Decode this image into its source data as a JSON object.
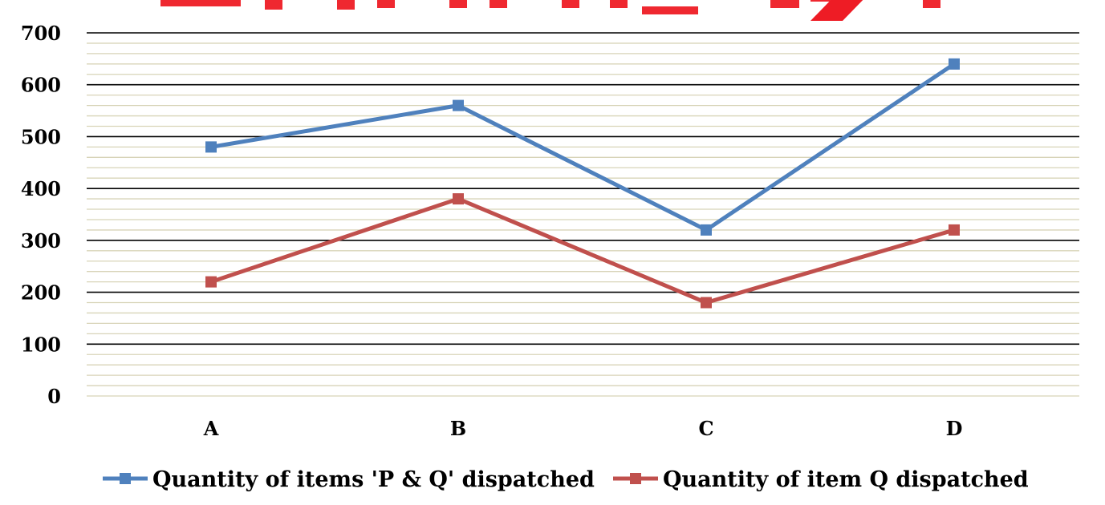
{
  "colors": {
    "series_pq": "#4F81BD",
    "series_q": "#C0504D",
    "watermark": "#EE1C25",
    "major_grid": "#000000",
    "minor_grid": "#D8D4B8"
  },
  "chart_data": {
    "type": "line",
    "categories": [
      "A",
      "B",
      "C",
      "D"
    ],
    "series": [
      {
        "name": "Quantity of items 'P & Q' dispatched",
        "values": [
          480,
          560,
          320,
          640
        ]
      },
      {
        "name": "Quantity of item Q dispatched",
        "values": [
          220,
          380,
          180,
          320
        ]
      }
    ],
    "ylim": [
      0,
      700
    ],
    "yticks": [
      "0",
      "100",
      "200",
      "300",
      "400",
      "500",
      "600",
      "700"
    ],
    "grid": true,
    "legend_position": "bottom",
    "marker": "square"
  }
}
